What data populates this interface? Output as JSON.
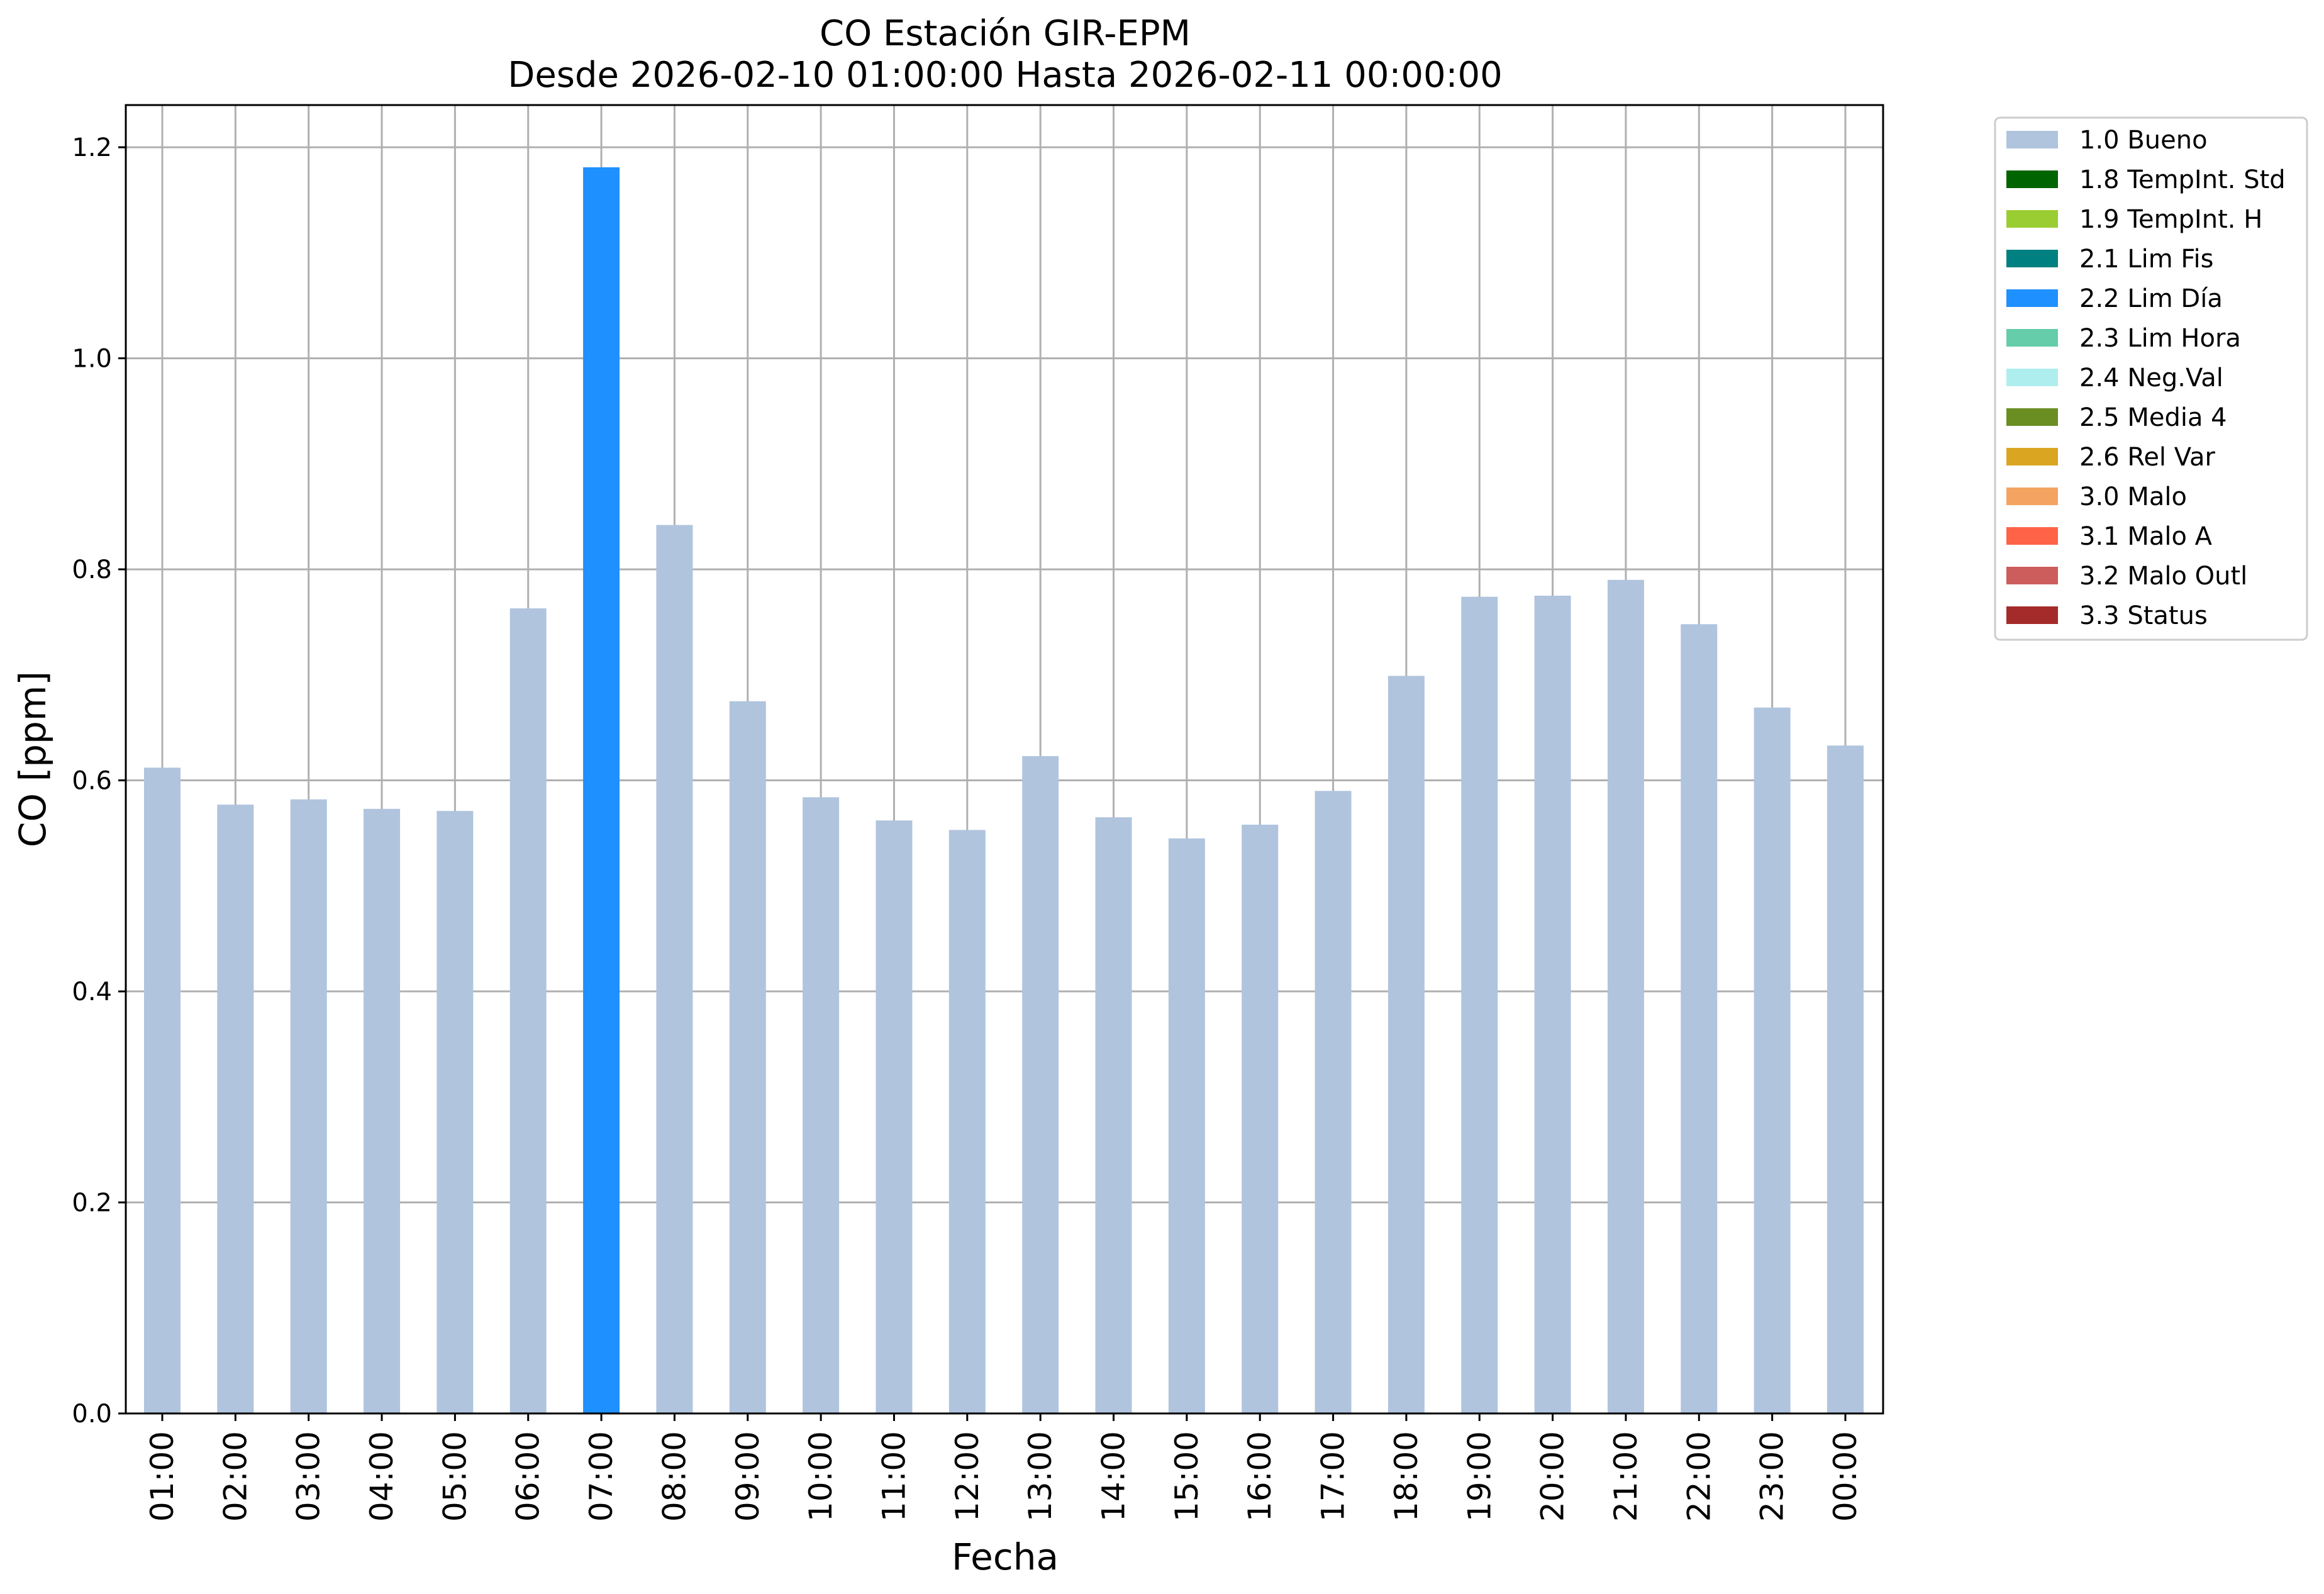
{
  "chart_data": {
    "type": "bar",
    "title": "CO Estación GIR-EPM",
    "subtitle": "Desde 2026-02-10 01:00:00 Hasta 2026-02-11 00:00:00",
    "xlabel": "Fecha",
    "ylabel": "CO [ppm]",
    "ylim": [
      0,
      1.24
    ],
    "yticks": [
      "0.0",
      "0.2",
      "0.4",
      "0.6",
      "0.8",
      "1.0",
      "1.2"
    ],
    "grid": true,
    "legend_position": "outside-top-right",
    "categories": [
      "01:00",
      "02:00",
      "03:00",
      "04:00",
      "05:00",
      "06:00",
      "07:00",
      "08:00",
      "09:00",
      "10:00",
      "11:00",
      "12:00",
      "13:00",
      "14:00",
      "15:00",
      "16:00",
      "17:00",
      "18:00",
      "19:00",
      "20:00",
      "21:00",
      "22:00",
      "23:00",
      "00:00"
    ],
    "values": [
      0.612,
      0.577,
      0.582,
      0.573,
      0.571,
      0.763,
      1.181,
      0.842,
      0.675,
      0.584,
      0.562,
      0.553,
      0.623,
      0.565,
      0.545,
      0.558,
      0.59,
      0.699,
      0.774,
      0.775,
      0.79,
      0.748,
      0.669,
      0.633
    ],
    "bar_flags": [
      "1.0 Bueno",
      "1.0 Bueno",
      "1.0 Bueno",
      "1.0 Bueno",
      "1.0 Bueno",
      "1.0 Bueno",
      "2.2 Lim Día",
      "1.0 Bueno",
      "1.0 Bueno",
      "1.0 Bueno",
      "1.0 Bueno",
      "1.0 Bueno",
      "1.0 Bueno",
      "1.0 Bueno",
      "1.0 Bueno",
      "1.0 Bueno",
      "1.0 Bueno",
      "1.0 Bueno",
      "1.0 Bueno",
      "1.0 Bueno",
      "1.0 Bueno",
      "1.0 Bueno",
      "1.0 Bueno",
      "1.0 Bueno"
    ],
    "legend": [
      {
        "label": "1.0 Bueno",
        "color": "#b0c4de"
      },
      {
        "label": "1.8 TempInt. Std",
        "color": "#006400"
      },
      {
        "label": "1.9 TempInt. H",
        "color": "#9acd32"
      },
      {
        "label": "2.1 Lim Fis",
        "color": "#008080"
      },
      {
        "label": "2.2 Lim Día",
        "color": "#1e90ff"
      },
      {
        "label": "2.3 Lim Hora",
        "color": "#66cdaa"
      },
      {
        "label": "2.4 Neg.Val",
        "color": "#afeeee"
      },
      {
        "label": "2.5 Media 4",
        "color": "#6b8e23"
      },
      {
        "label": "2.6 Rel Var",
        "color": "#daa520"
      },
      {
        "label": "3.0 Malo",
        "color": "#f4a460"
      },
      {
        "label": "3.1 Malo A",
        "color": "#ff6347"
      },
      {
        "label": "3.2 Malo Outl",
        "color": "#cd5c5c"
      },
      {
        "label": "3.3 Status",
        "color": "#a52a2a"
      }
    ]
  }
}
